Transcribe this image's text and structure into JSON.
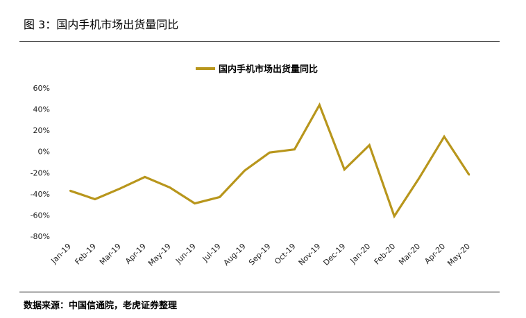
{
  "figure": {
    "title": "图 3：国内手机市场出货量同比",
    "source": "数据来源：中国信通院，老虎证券整理"
  },
  "chart_data": {
    "type": "line",
    "title": "",
    "xlabel": "",
    "ylabel": "",
    "categories": [
      "Jan-19",
      "Feb-19",
      "Mar-19",
      "Apr-19",
      "May-19",
      "Jun-19",
      "Jul-19",
      "Aug-19",
      "Sep-19",
      "Oct-19",
      "Nov-19",
      "Dec-19",
      "Jan-20",
      "Feb-20",
      "Mar-20",
      "Apr-20",
      "May-20"
    ],
    "series": [
      {
        "name": "国内手机市场出货量同比",
        "color": "#b8961c",
        "values": [
          -37,
          -45,
          -35,
          -24,
          -34,
          -49,
          -43,
          -18,
          -1,
          2,
          44,
          -17,
          6,
          -61,
          -25,
          14,
          -22
        ]
      }
    ],
    "ylim": [
      -80,
      60
    ],
    "yticks": [
      "-80%",
      "-60%",
      "-40%",
      "-20%",
      "0%",
      "20%",
      "40%",
      "60%"
    ],
    "legend": "top-center",
    "grid": false
  }
}
